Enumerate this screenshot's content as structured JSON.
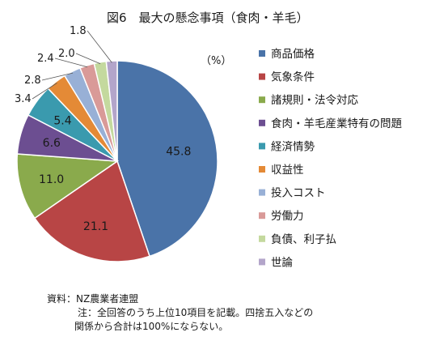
{
  "chart_data": {
    "type": "pie",
    "title": "図6　最大の懸念事項（食肉・羊毛）",
    "unit": "（%）",
    "slices": [
      {
        "name": "商品価格",
        "value": 45.8,
        "color": "#4a73a8"
      },
      {
        "name": "気象条件",
        "value": 21.1,
        "color": "#b84545"
      },
      {
        "name": "諸規則・法令対応",
        "value": 11.0,
        "color": "#8aaa4c"
      },
      {
        "name": "食肉・羊毛産業特有の問題",
        "value": 6.6,
        "color": "#6c4e91"
      },
      {
        "name": "経済情勢",
        "value": 5.4,
        "color": "#3a9aae"
      },
      {
        "name": "収益性",
        "value": 3.4,
        "color": "#e48a36"
      },
      {
        "name": "投入コスト",
        "value": 2.8,
        "color": "#98b0d6"
      },
      {
        "name": "労働力",
        "value": 2.4,
        "color": "#d99a98"
      },
      {
        "name": "負債、利子払",
        "value": 2.0,
        "color": "#c4d99e"
      },
      {
        "name": "世論",
        "value": 1.8,
        "color": "#b3a5ca"
      }
    ],
    "inside_labels": [
      "45.8",
      "21.1",
      "11.0",
      "6.6",
      "5.4"
    ],
    "outside_labels": [
      "3.4",
      "2.8",
      "2.4",
      "2.0",
      "1.8"
    ],
    "legend_placement": "right"
  },
  "notes": {
    "source": "資料：NZ農業者連盟",
    "note_line1": "注：全回答のうち上位10項目を記載。四捨五入などの",
    "note_line2": "関係から合計は100%にならない。"
  }
}
